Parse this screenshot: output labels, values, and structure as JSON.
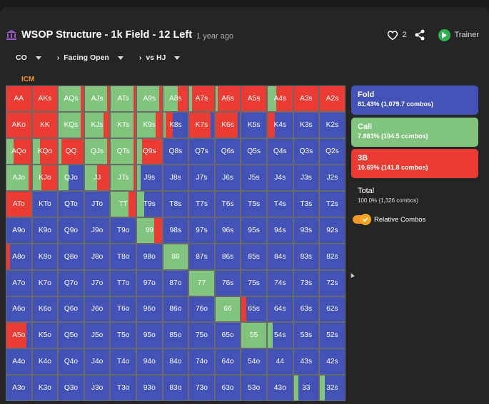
{
  "header": {
    "title": "WSOP Structure - 1k Field - 12 Left",
    "subtitle": "1 year ago",
    "likes": "2",
    "trainer_label": "Trainer"
  },
  "selectors": {
    "position": "CO",
    "action": "Facing Open",
    "versus": "vs HJ"
  },
  "icm_label": "ICM",
  "colors": {
    "fold": "#4352b7",
    "call": "#80c47d",
    "bet": "#ec3b33"
  },
  "legend": {
    "fold": {
      "label": "Fold",
      "value": "81.43% (1,079.7 combos)"
    },
    "call": {
      "label": "Call",
      "value": "7.883% (104.5 combos)"
    },
    "bet": {
      "label": "3B",
      "value": "10.69% (141.8 combos)"
    },
    "total": {
      "label": "Total",
      "value": "100.0% (1,326 combos)"
    },
    "relative_combos": "Relative Combos"
  },
  "grid": {
    "rows": [
      [
        "AA",
        "AKs",
        "AQs",
        "AJs",
        "ATs",
        "A9s",
        "A8s",
        "A7s",
        "A6s",
        "A5s",
        "A4s",
        "A3s",
        "A2s"
      ],
      [
        "AKo",
        "KK",
        "KQs",
        "KJs",
        "KTs",
        "K9s",
        "K8s",
        "K7s",
        "K6s",
        "K5s",
        "K4s",
        "K3s",
        "K2s"
      ],
      [
        "AQo",
        "KQo",
        "QQ",
        "QJs",
        "QTs",
        "Q9s",
        "Q8s",
        "Q7s",
        "Q6s",
        "Q5s",
        "Q4s",
        "Q3s",
        "Q2s"
      ],
      [
        "AJo",
        "KJo",
        "QJo",
        "JJ",
        "JTs",
        "J9s",
        "J8s",
        "J7s",
        "J6s",
        "J5s",
        "J4s",
        "J3s",
        "J2s"
      ],
      [
        "ATo",
        "KTo",
        "QTo",
        "JTo",
        "TT",
        "T9s",
        "T8s",
        "T7s",
        "T6s",
        "T5s",
        "T4s",
        "T3s",
        "T2s"
      ],
      [
        "A9o",
        "K9o",
        "Q9o",
        "J9o",
        "T9o",
        "99",
        "98s",
        "97s",
        "96s",
        "95s",
        "94s",
        "93s",
        "92s"
      ],
      [
        "A8o",
        "K8o",
        "Q8o",
        "J8o",
        "T8o",
        "98o",
        "88",
        "87s",
        "86s",
        "85s",
        "84s",
        "83s",
        "82s"
      ],
      [
        "A7o",
        "K7o",
        "Q7o",
        "J7o",
        "T7o",
        "97o",
        "87o",
        "77",
        "76s",
        "75s",
        "74s",
        "73s",
        "72s"
      ],
      [
        "A6o",
        "K6o",
        "Q6o",
        "J6o",
        "T6o",
        "96o",
        "86o",
        "76o",
        "66",
        "65s",
        "64s",
        "63s",
        "62s"
      ],
      [
        "A5o",
        "K5o",
        "Q5o",
        "J5o",
        "T5o",
        "95o",
        "85o",
        "75o",
        "65o",
        "55",
        "54s",
        "53s",
        "52s"
      ],
      [
        "A4o",
        "K4o",
        "Q4o",
        "J4o",
        "T4o",
        "94o",
        "84o",
        "74o",
        "64o",
        "54o",
        "44",
        "43s",
        "42s"
      ],
      [
        "A3o",
        "K3o",
        "Q3o",
        "J3o",
        "T3o",
        "93o",
        "83o",
        "73o",
        "63o",
        "53o",
        "43o",
        "33",
        "32s"
      ]
    ],
    "strategies": {
      "AA": [
        0,
        0,
        1
      ],
      "AKs": [
        0,
        0,
        1
      ],
      "AQs": [
        0,
        0.9,
        0.1
      ],
      "AJs": [
        0,
        0.9,
        0.1
      ],
      "ATs": [
        0,
        0.9,
        0.1
      ],
      "A9s": [
        0,
        0.9,
        0.1
      ],
      "A8s": [
        0,
        0.6,
        0.4
      ],
      "A7s": [
        0,
        0.1,
        0.9
      ],
      "A6s": [
        0,
        0.1,
        0.9
      ],
      "A5s": [
        0,
        0,
        1
      ],
      "A4s": [
        0,
        0.35,
        0.65
      ],
      "A3s": [
        0,
        0,
        1
      ],
      "A2s": [
        0,
        0,
        1
      ],
      "AKo": [
        0,
        0,
        1
      ],
      "KK": [
        0,
        0,
        1
      ],
      "KQs": [
        0,
        0.9,
        0.1
      ],
      "KJs": [
        0,
        0.75,
        0.25
      ],
      "KTs": [
        0,
        0.9,
        0.1
      ],
      "K9s": [
        0,
        0.75,
        0.25
      ],
      "K8s": [
        0.6,
        0.1,
        0.3
      ],
      "K7s": [
        0.15,
        0,
        0.85
      ],
      "K6s": [
        0.1,
        0,
        0.9
      ],
      "K4s": [
        0.7,
        0,
        0.3
      ],
      "AQo": [
        0,
        0.3,
        0.7
      ],
      "KQo": [
        0,
        0.3,
        0.7
      ],
      "QQ": [
        0,
        0.1,
        0.9
      ],
      "QJs": [
        0,
        0.9,
        0.1
      ],
      "QTs": [
        0,
        0.9,
        0.1
      ],
      "Q9s": [
        0,
        0.2,
        0.8
      ],
      "AJo": [
        0,
        0.9,
        0.1
      ],
      "KJo": [
        0,
        0.35,
        0.65
      ],
      "QJo": [
        0.6,
        0.4,
        0
      ],
      "JJ": [
        0,
        0.5,
        0.5
      ],
      "JTs": [
        0,
        0.9,
        0.1
      ],
      "J9s": [
        0.85,
        0.15,
        0
      ],
      "ATo": [
        0,
        0,
        1
      ],
      "TT": [
        0,
        0.7,
        0.3
      ],
      "T9s": [
        0.7,
        0.3,
        0
      ],
      "99": [
        0,
        0.7,
        0.3
      ],
      "A8o": [
        0.85,
        0,
        0.15
      ],
      "88": [
        0,
        1,
        0
      ],
      "77": [
        0,
        1,
        0
      ],
      "66": [
        0,
        1,
        0
      ],
      "65s": [
        0.8,
        0,
        0.2
      ],
      "A5o": [
        0.2,
        0,
        0.8
      ],
      "55": [
        0,
        1,
        0
      ],
      "54s": [
        0.8,
        0.2,
        0
      ],
      "33": [
        0.8,
        0.2,
        0
      ],
      "32s": [
        0.8,
        0.2,
        0
      ]
    }
  }
}
